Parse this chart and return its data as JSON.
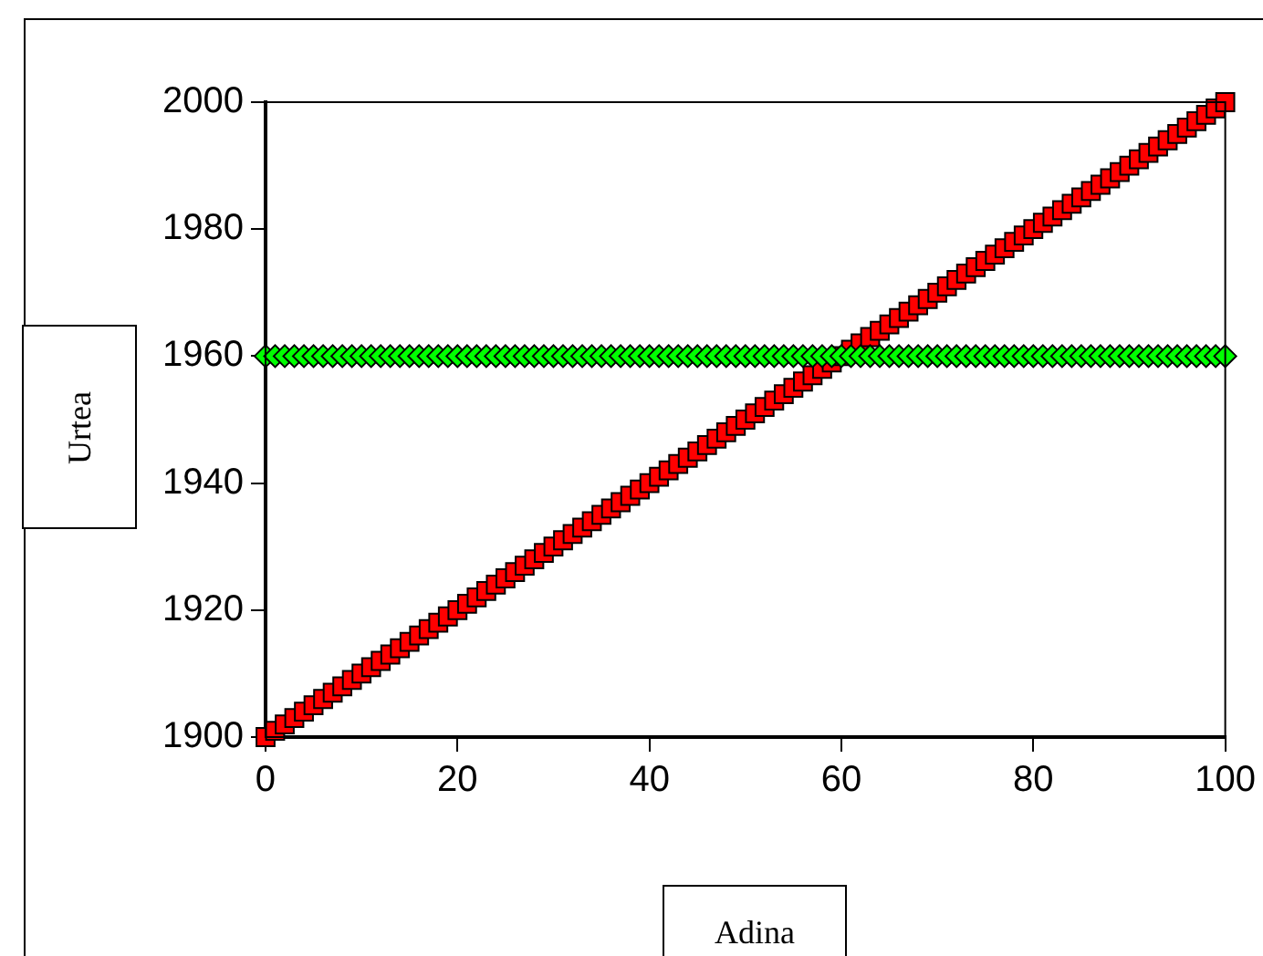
{
  "chart_data": {
    "type": "scatter",
    "xlabel": "Adina",
    "ylabel": "Urtea",
    "x": [
      0,
      1,
      2,
      3,
      4,
      5,
      6,
      7,
      8,
      9,
      10,
      11,
      12,
      13,
      14,
      15,
      16,
      17,
      18,
      19,
      20,
      21,
      22,
      23,
      24,
      25,
      26,
      27,
      28,
      29,
      30,
      31,
      32,
      33,
      34,
      35,
      36,
      37,
      38,
      39,
      40,
      41,
      42,
      43,
      44,
      45,
      46,
      47,
      48,
      49,
      50,
      51,
      52,
      53,
      54,
      55,
      56,
      57,
      58,
      59,
      60,
      61,
      62,
      63,
      64,
      65,
      66,
      67,
      68,
      69,
      70,
      71,
      72,
      73,
      74,
      75,
      76,
      77,
      78,
      79,
      80,
      81,
      82,
      83,
      84,
      85,
      86,
      87,
      88,
      89,
      90,
      91,
      92,
      93,
      94,
      95,
      96,
      97,
      98,
      99,
      100
    ],
    "series": [
      {
        "color": "#ff0000",
        "marker": "square",
        "values": [
          1900,
          1901,
          1902,
          1903,
          1904,
          1905,
          1906,
          1907,
          1908,
          1909,
          1910,
          1911,
          1912,
          1913,
          1914,
          1915,
          1916,
          1917,
          1918,
          1919,
          1920,
          1921,
          1922,
          1923,
          1924,
          1925,
          1926,
          1927,
          1928,
          1929,
          1930,
          1931,
          1932,
          1933,
          1934,
          1935,
          1936,
          1937,
          1938,
          1939,
          1940,
          1941,
          1942,
          1943,
          1944,
          1945,
          1946,
          1947,
          1948,
          1949,
          1950,
          1951,
          1952,
          1953,
          1954,
          1955,
          1956,
          1957,
          1958,
          1959,
          1960,
          1961,
          1962,
          1963,
          1964,
          1965,
          1966,
          1967,
          1968,
          1969,
          1970,
          1971,
          1972,
          1973,
          1974,
          1975,
          1976,
          1977,
          1978,
          1979,
          1980,
          1981,
          1982,
          1983,
          1984,
          1985,
          1986,
          1987,
          1988,
          1989,
          1990,
          1991,
          1992,
          1993,
          1994,
          1995,
          1996,
          1997,
          1998,
          1999,
          2000
        ]
      },
      {
        "color": "#00ff00",
        "marker": "diamond",
        "values": [
          1960,
          1960,
          1960,
          1960,
          1960,
          1960,
          1960,
          1960,
          1960,
          1960,
          1960,
          1960,
          1960,
          1960,
          1960,
          1960,
          1960,
          1960,
          1960,
          1960,
          1960,
          1960,
          1960,
          1960,
          1960,
          1960,
          1960,
          1960,
          1960,
          1960,
          1960,
          1960,
          1960,
          1960,
          1960,
          1960,
          1960,
          1960,
          1960,
          1960,
          1960,
          1960,
          1960,
          1960,
          1960,
          1960,
          1960,
          1960,
          1960,
          1960,
          1960,
          1960,
          1960,
          1960,
          1960,
          1960,
          1960,
          1960,
          1960,
          1960,
          1960,
          1960,
          1960,
          1960,
          1960,
          1960,
          1960,
          1960,
          1960,
          1960,
          1960,
          1960,
          1960,
          1960,
          1960,
          1960,
          1960,
          1960,
          1960,
          1960,
          1960,
          1960,
          1960,
          1960,
          1960,
          1960,
          1960,
          1960,
          1960,
          1960,
          1960,
          1960,
          1960,
          1960,
          1960,
          1960,
          1960,
          1960,
          1960,
          1960,
          1960
        ]
      }
    ],
    "xlim": [
      0,
      100
    ],
    "xticks": [
      0,
      20,
      40,
      60,
      80,
      100
    ],
    "ylim": [
      1900,
      2000
    ],
    "yticks": [
      1900,
      1920,
      1940,
      1960,
      1980,
      2000
    ],
    "grid": false,
    "legend": false
  }
}
